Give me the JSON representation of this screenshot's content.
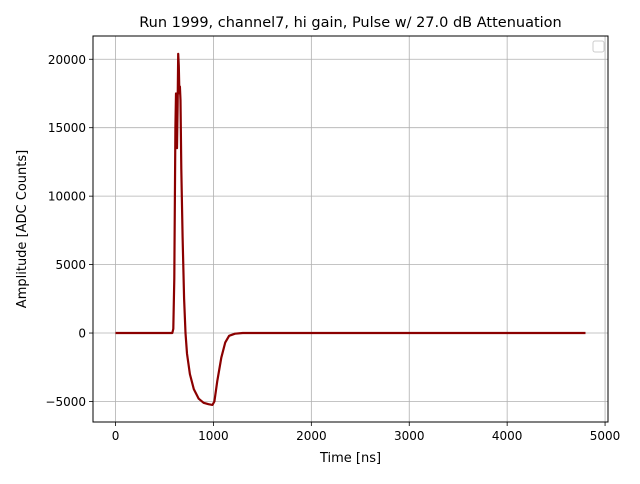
{
  "chart_data": {
    "type": "line",
    "title": "Run 1999, channel7, hi gain, Pulse w/ 27.0 dB Attenuation",
    "xlabel": "Time [ns]",
    "ylabel": "Amplitude [ADC Counts]",
    "xlim": [
      -230,
      5030
    ],
    "ylim": [
      -6500,
      21700
    ],
    "xticks": [
      0,
      1000,
      2000,
      3000,
      4000,
      5000
    ],
    "xtick_labels": [
      "0",
      "1000",
      "2000",
      "3000",
      "4000",
      "5000"
    ],
    "yticks": [
      -5000,
      0,
      5000,
      10000,
      15000,
      20000
    ],
    "ytick_labels": [
      "−5000",
      "0",
      "5000",
      "10000",
      "15000",
      "20000"
    ],
    "grid": true,
    "legend": "upper right (empty)",
    "series": [
      {
        "color": "#8b0000",
        "points": [
          [
            0,
            0
          ],
          [
            560,
            0
          ],
          [
            580,
            0
          ],
          [
            590,
            300
          ],
          [
            600,
            4000
          ],
          [
            605,
            9000
          ],
          [
            612,
            15000
          ],
          [
            618,
            17500
          ],
          [
            622,
            16000
          ],
          [
            628,
            13500
          ],
          [
            634,
            16500
          ],
          [
            640,
            20400
          ],
          [
            646,
            19500
          ],
          [
            652,
            17500
          ],
          [
            658,
            18000
          ],
          [
            664,
            17000
          ],
          [
            672,
            12000
          ],
          [
            685,
            7000
          ],
          [
            700,
            2500
          ],
          [
            715,
            0
          ],
          [
            730,
            -1500
          ],
          [
            760,
            -3000
          ],
          [
            800,
            -4100
          ],
          [
            850,
            -4800
          ],
          [
            900,
            -5100
          ],
          [
            950,
            -5200
          ],
          [
            990,
            -5250
          ],
          [
            1010,
            -5000
          ],
          [
            1040,
            -3500
          ],
          [
            1080,
            -1800
          ],
          [
            1120,
            -700
          ],
          [
            1160,
            -200
          ],
          [
            1220,
            -50
          ],
          [
            1300,
            0
          ],
          [
            4800,
            0
          ]
        ]
      }
    ]
  }
}
